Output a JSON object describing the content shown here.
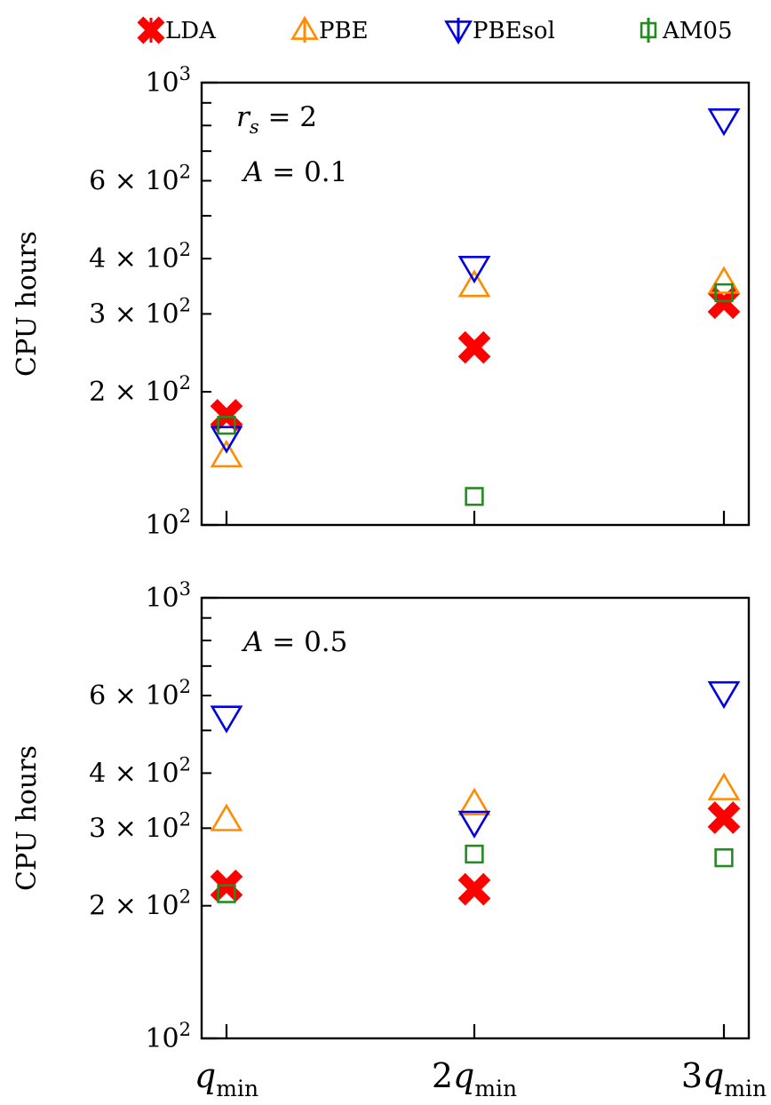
{
  "chart_data": [
    {
      "type": "scatter",
      "panel": "top",
      "annotations": [
        "r_s = 2",
        "A = 0.1"
      ],
      "ylabel": "CPU hours",
      "yscale": "log",
      "ylim": [
        100,
        1000
      ],
      "ytick_labels": [
        {
          "value": 1000,
          "mant": "",
          "exp": "3"
        },
        {
          "value": 600,
          "mant": "6 × ",
          "exp": "2"
        },
        {
          "value": 400,
          "mant": "4 × ",
          "exp": "2"
        },
        {
          "value": 300,
          "mant": "3 × ",
          "exp": "2"
        },
        {
          "value": 200,
          "mant": "2 × ",
          "exp": "2"
        },
        {
          "value": 100,
          "mant": "",
          "exp": "2"
        }
      ],
      "categories": [
        "q_min",
        "2q_min",
        "3q_min"
      ],
      "show_xtick_labels": false,
      "grid": false,
      "series": [
        {
          "name": "LDA",
          "color": "#ff0000",
          "marker": "x-filled",
          "values": [
            177,
            252,
            318
          ]
        },
        {
          "name": "PBE",
          "color": "#ff8c00",
          "marker": "triangle-up",
          "values": [
            143,
            347,
            353
          ]
        },
        {
          "name": "PBEsol",
          "color": "#0000e0",
          "marker": "triangle-down",
          "values": [
            158,
            383,
            825
          ]
        },
        {
          "name": "AM05",
          "color": "#228b22",
          "marker": "square",
          "values": [
            168,
            116,
            335
          ]
        }
      ]
    },
    {
      "type": "scatter",
      "panel": "bottom",
      "annotations": [
        "A = 0.5"
      ],
      "ylabel": "CPU hours",
      "yscale": "log",
      "ylim": [
        100,
        1000
      ],
      "ytick_labels": [
        {
          "value": 1000,
          "mant": "",
          "exp": "3"
        },
        {
          "value": 600,
          "mant": "6 × ",
          "exp": "2"
        },
        {
          "value": 400,
          "mant": "4 × ",
          "exp": "2"
        },
        {
          "value": 300,
          "mant": "3 × ",
          "exp": "2"
        },
        {
          "value": 200,
          "mant": "2 × ",
          "exp": "2"
        },
        {
          "value": 100,
          "mant": "",
          "exp": "2"
        }
      ],
      "categories": [
        "q_min",
        "2q_min",
        "3q_min"
      ],
      "show_xtick_labels": true,
      "grid": false,
      "series": [
        {
          "name": "LDA",
          "color": "#ff0000",
          "marker": "x-filled",
          "values": [
            222,
            218,
            317
          ]
        },
        {
          "name": "PBE",
          "color": "#ff8c00",
          "marker": "triangle-up",
          "values": [
            313,
            340,
            368
          ]
        },
        {
          "name": "PBEsol",
          "color": "#0000e0",
          "marker": "triangle-down",
          "values": [
            537,
            310,
            610
          ]
        },
        {
          "name": "AM05",
          "color": "#228b22",
          "marker": "square",
          "values": [
            213,
            262,
            257
          ]
        }
      ]
    }
  ],
  "legend": {
    "placement": "top",
    "entries": [
      {
        "name": "LDA",
        "color": "#ff0000",
        "marker": "x-filled"
      },
      {
        "name": "PBE",
        "color": "#ff8c00",
        "marker": "triangle-up"
      },
      {
        "name": "PBEsol",
        "color": "#0000e0",
        "marker": "triangle-down"
      },
      {
        "name": "AM05",
        "color": "#228b22",
        "marker": "square"
      }
    ]
  },
  "xtick_labels": [
    {
      "coef": "",
      "base": "q",
      "sub": "min"
    },
    {
      "coef": "2",
      "base": "q",
      "sub": "min"
    },
    {
      "coef": "3",
      "base": "q",
      "sub": "min"
    }
  ]
}
